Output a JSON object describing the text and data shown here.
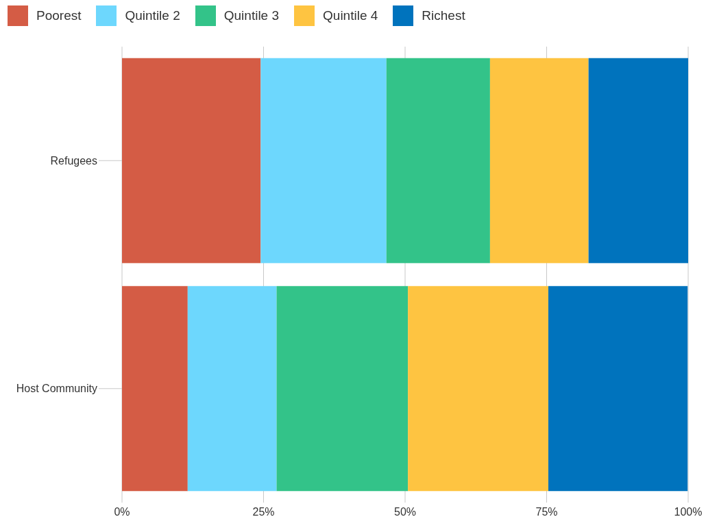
{
  "chart_data": {
    "type": "bar",
    "orientation": "horizontal",
    "stacked": true,
    "categories": [
      "Refugees",
      "Host Community"
    ],
    "series": [
      {
        "name": "Poorest",
        "color": "#d45c45",
        "values": [
          24.5,
          11.6
        ]
      },
      {
        "name": "Quintile 2",
        "color": "#6dd7fd",
        "values": [
          22.2,
          15.7
        ]
      },
      {
        "name": "Quintile 3",
        "color": "#33c389",
        "values": [
          18.3,
          23.2
        ]
      },
      {
        "name": "Quintile 4",
        "color": "#fec441",
        "values": [
          17.4,
          24.8
        ]
      },
      {
        "name": "Richest",
        "color": "#0073bd",
        "values": [
          17.6,
          24.6
        ]
      }
    ],
    "xlim": [
      0,
      100
    ],
    "xticks": [
      {
        "value": 0,
        "label": "0%"
      },
      {
        "value": 25,
        "label": "25%"
      },
      {
        "value": 50,
        "label": "50%"
      },
      {
        "value": 75,
        "label": "75%"
      },
      {
        "value": 100,
        "label": "100%"
      }
    ],
    "grid": "x",
    "legend": "top left"
  }
}
